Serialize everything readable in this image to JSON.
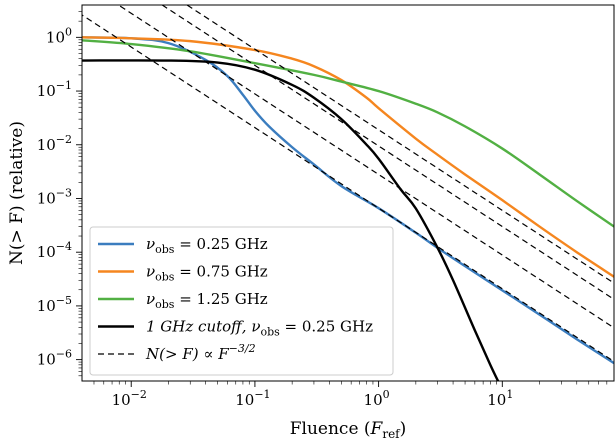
{
  "chart_data": {
    "type": "line",
    "xlabel_main": "Fluence (",
    "xlabel_sym": "F",
    "xlabel_sub": "ref",
    "xlabel_close": ")",
    "ylabel": "N(> F) (relative)",
    "xscale": "log",
    "yscale": "log",
    "xlim": [
      0.004,
      80
    ],
    "ylim": [
      4e-07,
      4
    ],
    "grid": false,
    "legend_placement": "lower-left",
    "x_ticks": [
      {
        "value": 0.01,
        "base": "10",
        "exp": "−2"
      },
      {
        "value": 0.1,
        "base": "10",
        "exp": "−1"
      },
      {
        "value": 1,
        "base": "10",
        "exp": "0"
      },
      {
        "value": 10,
        "base": "10",
        "exp": "1"
      }
    ],
    "y_ticks": [
      {
        "value": 1,
        "base": "10",
        "exp": "0"
      },
      {
        "value": 0.1,
        "base": "10",
        "exp": "−1"
      },
      {
        "value": 0.01,
        "base": "10",
        "exp": "−2"
      },
      {
        "value": 0.001,
        "base": "10",
        "exp": "−3"
      },
      {
        "value": 0.0001,
        "base": "10",
        "exp": "−4"
      },
      {
        "value": 1e-05,
        "base": "10",
        "exp": "−5"
      },
      {
        "value": 1e-06,
        "base": "10",
        "exp": "−6"
      }
    ],
    "series": [
      {
        "name": "ν_obs = 0.25 GHz",
        "legend_math": "ν",
        "legend_sub": "obs",
        "legend_rest": " = 0.25 GHz",
        "color": "#3b7dbf",
        "dash": "",
        "x": [
          0.004,
          0.01,
          0.02,
          0.04,
          0.06,
          0.08,
          0.1,
          0.13,
          0.2,
          0.3,
          0.5,
          1,
          2,
          3,
          5,
          10,
          20,
          40,
          80
        ],
        "y": [
          1.0,
          0.96,
          0.78,
          0.38,
          0.19,
          0.085,
          0.043,
          0.022,
          0.009,
          0.0043,
          0.0017,
          0.00066,
          0.00023,
          0.00012,
          5.5e-05,
          1.95e-05,
          6.9e-06,
          2.4e-06,
          8.6e-07
        ]
      },
      {
        "name": "ν_obs = 0.75 GHz",
        "legend_math": "ν",
        "legend_sub": "obs",
        "legend_rest": " = 0.75 GHz",
        "color": "#f5861f",
        "dash": "",
        "x": [
          0.004,
          0.01,
          0.03,
          0.1,
          0.2,
          0.3,
          0.5,
          0.8,
          1,
          2,
          3,
          5,
          10,
          20,
          40,
          80
        ],
        "y": [
          1.0,
          0.96,
          0.85,
          0.58,
          0.4,
          0.29,
          0.16,
          0.075,
          0.048,
          0.013,
          0.0065,
          0.0028,
          0.00093,
          0.0003,
          0.0001,
          3.5e-05
        ]
      },
      {
        "name": "ν_obs = 1.25 GHz",
        "legend_math": "ν",
        "legend_sub": "obs",
        "legend_rest": " = 1.25 GHz",
        "color": "#52b043",
        "dash": "",
        "x": [
          0.004,
          0.01,
          0.03,
          0.1,
          0.3,
          0.5,
          1,
          2,
          3,
          5,
          10,
          20,
          40,
          80
        ],
        "y": [
          0.88,
          0.75,
          0.55,
          0.33,
          0.2,
          0.15,
          0.1,
          0.058,
          0.04,
          0.022,
          0.0085,
          0.0028,
          0.0009,
          0.0003
        ]
      },
      {
        "name": "1 GHz cutoff, ν_obs = 0.25 GHz",
        "legend_math": "1 GHz cutoff, ν",
        "legend_sub": "obs",
        "legend_rest": " = 0.25 GHz",
        "color": "#000000",
        "dash": "",
        "x": [
          0.004,
          0.02,
          0.05,
          0.1,
          0.2,
          0.3,
          0.5,
          0.8,
          1,
          1.5,
          2,
          3,
          4,
          6,
          8,
          9.5
        ],
        "y": [
          0.37,
          0.37,
          0.34,
          0.25,
          0.13,
          0.075,
          0.03,
          0.01,
          0.0055,
          0.0015,
          0.00065,
          0.00012,
          3e-05,
          3.5e-06,
          8e-07,
          3.5e-07
        ]
      },
      {
        "name": "N(> F) ∝ F^−3/2",
        "legend_math": "N(> F) ∝ F",
        "legend_sub": "",
        "legend_sup": "−3/2",
        "legend_rest": "",
        "color": "#000000",
        "dash": "6,4",
        "reference_lines": [
          {
            "amp": 0.00066
          },
          {
            "amp": 0.0028
          },
          {
            "amp": 0.0095
          },
          {
            "amp": 0.019
          }
        ]
      }
    ]
  }
}
